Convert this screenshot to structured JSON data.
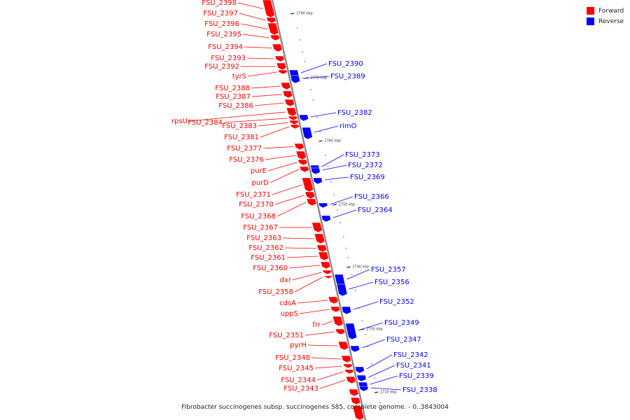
{
  "legend": {
    "forward": {
      "label": "Forward",
      "color": "#ff0000"
    },
    "reverse": {
      "label": "Reverse",
      "color": "#0000ff"
    }
  },
  "caption": "Fibrobacter succinogenes subsp. succinogenes S85, complete genome. - 0..3843004",
  "backbone_color": "#888888",
  "ticks": [
    "2780 kbp",
    "2770 kbp",
    "2760 kbp",
    "2750 kbp",
    "2740 kbp",
    "2730 kbp",
    "2720 kbp"
  ],
  "forward_genes": [
    "FSU_2398",
    "FSU_2397",
    "FSU_2396",
    "FSU_2395",
    "FSU_2394",
    "FSU_2393",
    "FSU_2392",
    "tyrS",
    "FSU_2388",
    "FSU_2387",
    "FSU_2386",
    "rpsU",
    "FSU_2384",
    "FSU_2383",
    "FSU_2381",
    "FSU_2377",
    "FSU_2376",
    "purE",
    "purD",
    "FSU_2371",
    "FSU_2370",
    "FSU_2368",
    "FSU_2367",
    "FSU_2363",
    "FSU_2362",
    "FSU_2361",
    "FSU_2360",
    "dxr",
    "FSU_2358",
    "cdsA",
    "uppS",
    "frr",
    "FSU_2351",
    "pyrH",
    "FSU_2348",
    "FSU_2345",
    "FSU_2344",
    "FSU_2343"
  ],
  "reverse_genes": [
    "FSU_2390",
    "FSU_2389",
    "FSU_2382",
    "rimO",
    "FSU_2373",
    "FSU_2372",
    "FSU_2369",
    "FSU_2366",
    "FSU_2364",
    "FSU_2357",
    "FSU_2356",
    "FSU_2352",
    "FSU_2349",
    "FSU_2347",
    "FSU_2342",
    "FSU_2341",
    "FSU_2339",
    "FSU_2338"
  ]
}
